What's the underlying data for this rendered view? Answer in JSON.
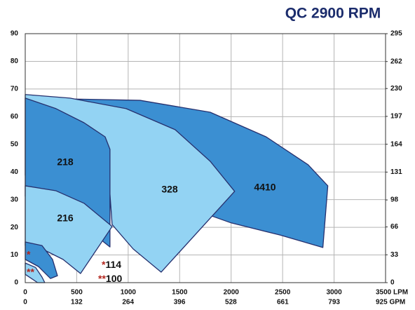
{
  "chart_data": {
    "type": "area",
    "title": "QC 2900 RPM",
    "xlim": [
      0,
      3500
    ],
    "xticks": [
      0,
      500,
      1000,
      1500,
      2000,
      2500,
      3000,
      {
        "value": 3500,
        "label": "3500 LPM"
      }
    ],
    "x2lim": [
      0,
      925
    ],
    "x2ticks": [
      0,
      132,
      264,
      396,
      528,
      661,
      793,
      {
        "value": 925,
        "label": "925 GPM"
      }
    ],
    "ylim": [
      0,
      90
    ],
    "yticks": [
      0,
      10,
      20,
      30,
      40,
      50,
      60,
      70,
      80,
      90
    ],
    "y2lim": [
      0,
      295
    ],
    "y2ticks": [
      0,
      33,
      66,
      98,
      131,
      164,
      197,
      230,
      262,
      295
    ],
    "grid": true,
    "series": [
      {
        "name": "4410",
        "color": "#3b8fd2",
        "x": [
          435,
          1116,
          1796,
          2340,
          2748,
          2939,
          2891,
          2476,
          2000,
          1660,
          1320,
          844
        ],
        "y": [
          66.4,
          65.9,
          61.6,
          52.7,
          42.6,
          35.0,
          12.7,
          17.2,
          21.6,
          26.1,
          31.2,
          38.8
        ]
      },
      {
        "name": "328",
        "color": "#93d3f3",
        "x": [
          0,
          435,
          980,
          1456,
          1796,
          2034,
          1320,
          1048,
          844,
          810,
          0
        ],
        "y": [
          68.0,
          66.7,
          62.9,
          55.3,
          43.9,
          33.0,
          3.8,
          12.2,
          21.0,
          38.8,
          38.8
        ]
      },
      {
        "name": "218",
        "color": "#3b8fd2",
        "x": [
          0,
          299,
          571,
          776,
          823,
          823,
          762,
          435,
          0
        ],
        "y": [
          66.7,
          62.9,
          57.8,
          52.7,
          48.2,
          12.9,
          14.7,
          26.1,
          31.2
        ]
      },
      {
        "name": "216",
        "color": "#93d3f3",
        "x": [
          0,
          299,
          571,
          844,
          537,
          367,
          163,
          0
        ],
        "y": [
          35.0,
          33.2,
          28.7,
          20.3,
          3.3,
          8.4,
          12.2,
          13.4
        ]
      },
      {
        "color": "#3b8fd2",
        "x": [
          0,
          163,
          265,
          313,
          245,
          129,
          0
        ],
        "y": [
          14.7,
          13.4,
          8.4,
          2.5,
          1.5,
          5.8,
          8.4
        ]
      },
      {
        "color": "#93d3f3",
        "x": [
          0,
          100,
          163,
          190,
          120,
          60,
          0
        ],
        "y": [
          7.1,
          5.5,
          2.0,
          0,
          0,
          1.5,
          3.0
        ]
      }
    ],
    "annotations": [
      {
        "marker": "*",
        "text": "114"
      },
      {
        "marker": "**",
        "text": "100"
      }
    ],
    "side_markers": [
      "*",
      "**"
    ]
  }
}
